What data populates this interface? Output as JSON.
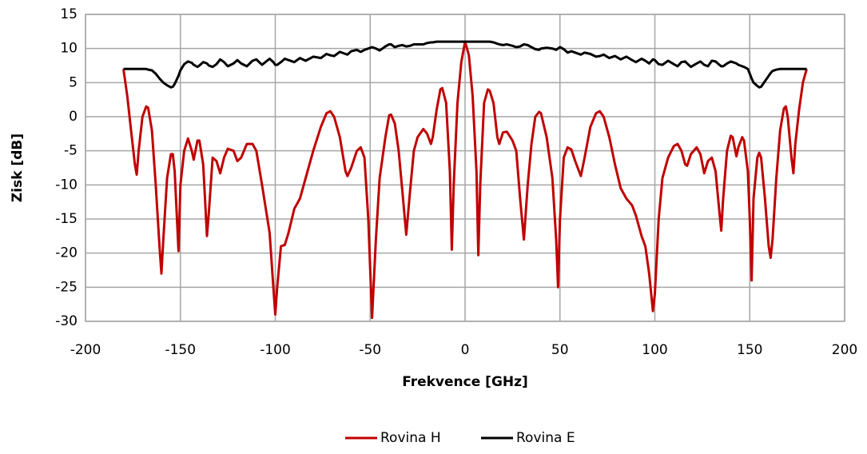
{
  "chart_data": {
    "type": "line",
    "x_label": "Frekvence [GHz]",
    "y_label": "Zisk [dB]",
    "x": [
      -180,
      -178,
      -176,
      -174,
      -173,
      -172,
      -170,
      -168,
      -167,
      -165,
      -163,
      -161,
      -160,
      -159,
      -157,
      -155,
      -154,
      -153,
      -151,
      -150,
      -148,
      -146,
      -144,
      -143,
      -141,
      -140,
      -138,
      -136,
      -135,
      -133,
      -131,
      -129,
      -127,
      -125,
      -122,
      -120,
      -118,
      -115,
      -112,
      -110,
      -107,
      -103,
      -101,
      -100,
      -99,
      -97,
      -95,
      -93,
      -90,
      -87,
      -84,
      -80,
      -76,
      -73,
      -71,
      -69,
      -66,
      -63,
      -62,
      -60,
      -57,
      -55,
      -53,
      -51,
      -49,
      -47,
      -45,
      -42,
      -40,
      -39,
      -37,
      -35,
      -33,
      -31,
      -29,
      -27,
      -25,
      -22,
      -20,
      -18,
      -17,
      -15,
      -13,
      -12,
      -10,
      -8,
      -7,
      -6,
      -4,
      -2,
      0,
      2,
      4,
      6,
      7,
      8,
      10,
      12,
      13,
      15,
      17,
      18,
      20,
      22,
      25,
      27,
      29,
      31,
      33,
      35,
      37,
      39,
      40,
      43,
      46,
      48,
      49,
      50,
      52,
      54,
      56,
      58,
      61,
      63,
      66,
      69,
      71,
      73,
      76,
      79,
      82,
      85,
      88,
      90,
      93,
      95,
      97,
      99,
      100,
      102,
      104,
      107,
      110,
      112,
      114,
      116,
      117,
      119,
      122,
      124,
      126,
      128,
      130,
      132,
      134,
      135,
      136,
      138,
      140,
      141,
      143,
      144,
      146,
      147,
      149,
      150,
      151,
      152,
      154,
      155,
      156,
      158,
      160,
      161,
      162,
      164,
      166,
      168,
      169,
      170,
      172,
      173,
      174,
      176,
      178,
      180
    ],
    "series": [
      {
        "name": "Rovina H",
        "color": "#c00000",
        "values": [
          7,
          3,
          -2,
          -7,
          -8.5,
          -5,
          0,
          1.5,
          1.3,
          -2,
          -10,
          -19,
          -23,
          -18,
          -9,
          -5.5,
          -5.5,
          -8,
          -19.7,
          -10,
          -5,
          -3.2,
          -5,
          -6.3,
          -3.5,
          -3.5,
          -7,
          -17.5,
          -14,
          -6,
          -6.5,
          -8.3,
          -6,
          -4.7,
          -5,
          -6.5,
          -6,
          -4,
          -4,
          -5,
          -10,
          -17,
          -25,
          -29,
          -25,
          -19,
          -18.8,
          -17,
          -13.5,
          -12,
          -9,
          -5,
          -1.5,
          0.5,
          0.8,
          0,
          -3,
          -8,
          -8.7,
          -7.5,
          -5,
          -4.5,
          -6,
          -15,
          -29.5,
          -18,
          -9,
          -3,
          0.2,
          0.3,
          -1,
          -5,
          -11,
          -17.3,
          -11,
          -5,
          -3,
          -1.8,
          -2.5,
          -4,
          -3,
          1,
          4,
          4.2,
          2,
          -8,
          -19.5,
          -10,
          2,
          8,
          11,
          9,
          3,
          -8,
          -20.3,
          -10,
          2,
          4,
          3.8,
          2,
          -3,
          -4,
          -2.3,
          -2.2,
          -3.5,
          -5,
          -12,
          -18,
          -10,
          -4,
          0,
          0.7,
          0.5,
          -3,
          -9,
          -18,
          -25,
          -15,
          -6,
          -4.5,
          -4.8,
          -6.5,
          -8.7,
          -6,
          -1.5,
          0.5,
          0.8,
          0,
          -3,
          -7,
          -10.5,
          -12,
          -13,
          -14.5,
          -17.5,
          -19,
          -23,
          -28.5,
          -26,
          -15,
          -9,
          -6,
          -4.3,
          -4,
          -5,
          -7,
          -7.2,
          -5.5,
          -4.5,
          -5.5,
          -8.3,
          -6.5,
          -6,
          -8,
          -14,
          -16.7,
          -12,
          -5,
          -2.8,
          -3,
          -5.8,
          -4.5,
          -3,
          -3.5,
          -8,
          -15,
          -24,
          -12,
          -6,
          -5.3,
          -6,
          -12,
          -19,
          -20.7,
          -18,
          -9,
          -2,
          1.2,
          1.5,
          0,
          -6,
          -8.3,
          -4,
          1,
          5,
          7
        ]
      },
      {
        "name": "Rovina E",
        "color": "#000000",
        "values": [
          7,
          7,
          7,
          7,
          7,
          7,
          7,
          7,
          6.9,
          6.8,
          6.3,
          5.6,
          5.3,
          5,
          4.6,
          4.3,
          4.4,
          4.8,
          6,
          6.8,
          7.7,
          8.1,
          7.9,
          7.6,
          7.3,
          7.5,
          8,
          7.8,
          7.5,
          7.3,
          7.7,
          8.4,
          8,
          7.4,
          7.8,
          8.3,
          7.8,
          7.4,
          8.2,
          8.4,
          7.6,
          8.5,
          8,
          7.6,
          7.6,
          8,
          8.5,
          8.3,
          8,
          8.6,
          8.2,
          8.8,
          8.6,
          9.2,
          9,
          8.9,
          9.5,
          9.2,
          9.1,
          9.6,
          9.8,
          9.5,
          9.8,
          10,
          10.2,
          10,
          9.7,
          10.3,
          10.6,
          10.6,
          10.2,
          10.4,
          10.5,
          10.3,
          10.4,
          10.6,
          10.6,
          10.6,
          10.8,
          10.9,
          10.9,
          11,
          11,
          11,
          11,
          11,
          11,
          11,
          11,
          11,
          11,
          11,
          11,
          11,
          11,
          11,
          11,
          11,
          11,
          10.9,
          10.7,
          10.6,
          10.5,
          10.6,
          10.4,
          10.2,
          10.3,
          10.6,
          10.5,
          10.2,
          9.9,
          9.8,
          10,
          10.1,
          10,
          9.8,
          10,
          10.2,
          9.9,
          9.4,
          9.6,
          9.4,
          9.1,
          9.4,
          9.2,
          8.8,
          8.9,
          9.1,
          8.6,
          8.9,
          8.4,
          8.8,
          8.3,
          8,
          8.5,
          8.2,
          7.8,
          8.4,
          8.3,
          7.7,
          7.6,
          8.2,
          7.7,
          7.4,
          8,
          8.1,
          7.8,
          7.3,
          7.8,
          8.1,
          7.6,
          7.4,
          8.2,
          8.1,
          7.6,
          7.4,
          7.4,
          7.8,
          8.1,
          8,
          7.8,
          7.6,
          7.4,
          7.3,
          7,
          6.3,
          5.6,
          5,
          4.5,
          4.3,
          4.4,
          5.2,
          6,
          6.4,
          6.7,
          6.9,
          7,
          7,
          7,
          7,
          7,
          7,
          7,
          7,
          7,
          7
        ]
      }
    ],
    "xlim": [
      -200,
      200
    ],
    "xticks": [
      -200,
      -150,
      -100,
      -50,
      0,
      50,
      100,
      150,
      200
    ],
    "ylim": [
      -30,
      15
    ],
    "yticks": [
      -30,
      -25,
      -20,
      -15,
      -10,
      -5,
      0,
      5,
      10,
      15
    ],
    "grid": true,
    "legend": "bottom"
  }
}
